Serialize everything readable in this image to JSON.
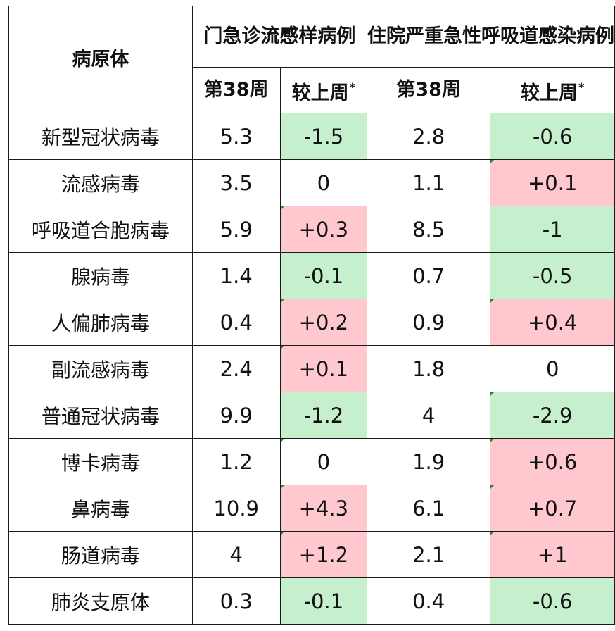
{
  "table": {
    "header": {
      "pathogen": "病原体",
      "outpatient_group": "门急诊流感样病例",
      "inpatient_group": "住院严重急性呼吸道感染病例",
      "week": "第38周",
      "change": "较上周",
      "change_marker": "*"
    },
    "rows": [
      {
        "name": "新型冠状病毒",
        "op_week": "5.3",
        "op_change": "-1.5",
        "ip_week": "2.8",
        "ip_change": "-0.6"
      },
      {
        "name": "流感病毒",
        "op_week": "3.5",
        "op_change": "0",
        "ip_week": "1.1",
        "ip_change": "+0.1"
      },
      {
        "name": "呼吸道合胞病毒",
        "op_week": "5.9",
        "op_change": "+0.3",
        "ip_week": "8.5",
        "ip_change": "-1"
      },
      {
        "name": "腺病毒",
        "op_week": "1.4",
        "op_change": "-0.1",
        "ip_week": "0.7",
        "ip_change": "-0.5"
      },
      {
        "name": "人偏肺病毒",
        "op_week": "0.4",
        "op_change": "+0.2",
        "ip_week": "0.9",
        "ip_change": "+0.4"
      },
      {
        "name": "副流感病毒",
        "op_week": "2.4",
        "op_change": "+0.1",
        "ip_week": "1.8",
        "ip_change": "0"
      },
      {
        "name": "普通冠状病毒",
        "op_week": "9.9",
        "op_change": "-1.2",
        "ip_week": "4",
        "ip_change": "-2.9"
      },
      {
        "name": "博卡病毒",
        "op_week": "1.2",
        "op_change": "0",
        "ip_week": "1.9",
        "ip_change": "+0.6"
      },
      {
        "name": "鼻病毒",
        "op_week": "10.9",
        "op_change": "+4.3",
        "ip_week": "6.1",
        "ip_change": "+0.7"
      },
      {
        "name": "肠道病毒",
        "op_week": "4",
        "op_change": "+1.2",
        "ip_week": "2.1",
        "ip_change": "+1"
      },
      {
        "name": "肺炎支原体",
        "op_week": "0.3",
        "op_change": "-0.1",
        "ip_week": "0.4",
        "ip_change": "-0.6"
      }
    ]
  },
  "colors": {
    "increase_fill": "#ffc7ce",
    "increase_text": "#b0001e",
    "decrease_fill": "#c6efce",
    "decrease_text": "#1f6b1f",
    "border": "#1a1a1a"
  }
}
